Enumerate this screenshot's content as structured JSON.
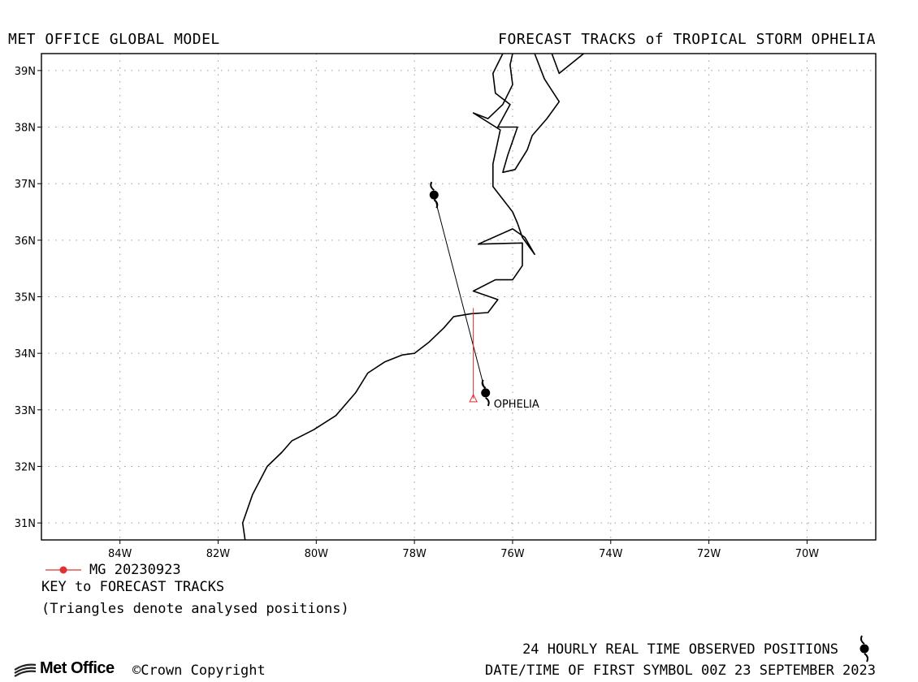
{
  "header": {
    "left": "MET OFFICE GLOBAL MODEL",
    "right": "FORECAST TRACKS of TROPICAL STORM OPHELIA"
  },
  "map": {
    "lon_range": [
      -85.6,
      -68.6
    ],
    "lat_range": [
      30.7,
      39.3
    ],
    "x_ticks": [
      {
        "value": -84,
        "label": "84W"
      },
      {
        "value": -82,
        "label": "82W"
      },
      {
        "value": -80,
        "label": "80W"
      },
      {
        "value": -78,
        "label": "78W"
      },
      {
        "value": -76,
        "label": "76W"
      },
      {
        "value": -74,
        "label": "74W"
      },
      {
        "value": -72,
        "label": "72W"
      },
      {
        "value": -70,
        "label": "70W"
      }
    ],
    "y_ticks": [
      {
        "value": 31,
        "label": "31N"
      },
      {
        "value": 32,
        "label": "32N"
      },
      {
        "value": 33,
        "label": "33N"
      },
      {
        "value": 34,
        "label": "34N"
      },
      {
        "value": 35,
        "label": "35N"
      },
      {
        "value": 36,
        "label": "36N"
      },
      {
        "value": 37,
        "label": "37N"
      },
      {
        "value": 38,
        "label": "38N"
      },
      {
        "value": 39,
        "label": "39N"
      }
    ],
    "grid": "dotted",
    "coastline": [
      [
        [
          -81.45,
          30.7
        ],
        [
          -81.5,
          31.0
        ],
        [
          -81.3,
          31.5
        ],
        [
          -81.0,
          32.0
        ],
        [
          -80.7,
          32.25
        ],
        [
          -80.5,
          32.45
        ],
        [
          -80.05,
          32.65
        ],
        [
          -79.6,
          32.9
        ],
        [
          -79.2,
          33.3
        ],
        [
          -78.95,
          33.65
        ],
        [
          -78.6,
          33.85
        ],
        [
          -78.25,
          33.97
        ],
        [
          -78.0,
          34.0
        ],
        [
          -77.7,
          34.2
        ],
        [
          -77.4,
          34.45
        ],
        [
          -77.2,
          34.65
        ],
        [
          -76.85,
          34.7
        ],
        [
          -76.5,
          34.72
        ],
        [
          -76.3,
          34.95
        ],
        [
          -76.8,
          35.1
        ],
        [
          -76.35,
          35.3
        ],
        [
          -76.0,
          35.3
        ],
        [
          -75.8,
          35.55
        ],
        [
          -75.8,
          35.95
        ],
        [
          -76.7,
          35.93
        ],
        [
          -76.0,
          36.2
        ],
        [
          -75.75,
          36.05
        ],
        [
          -75.55,
          35.75
        ],
        [
          -75.8,
          36.05
        ],
        [
          -75.9,
          36.3
        ],
        [
          -76.0,
          36.5
        ],
        [
          -76.4,
          36.95
        ],
        [
          -76.4,
          37.35
        ],
        [
          -76.25,
          37.95
        ],
        [
          -76.8,
          38.25
        ],
        [
          -76.5,
          38.15
        ],
        [
          -76.2,
          38.4
        ],
        [
          -76.0,
          38.75
        ],
        [
          -76.05,
          39.1
        ],
        [
          -76.0,
          39.3
        ]
      ],
      [
        [
          -76.2,
          39.3
        ],
        [
          -76.4,
          38.95
        ],
        [
          -76.35,
          38.6
        ],
        [
          -76.05,
          38.4
        ],
        [
          -76.3,
          38.0
        ],
        [
          -75.9,
          38.0
        ],
        [
          -76.1,
          37.5
        ],
        [
          -76.2,
          37.2
        ],
        [
          -75.95,
          37.25
        ],
        [
          -75.7,
          37.6
        ],
        [
          -75.6,
          37.85
        ],
        [
          -75.3,
          38.15
        ],
        [
          -75.05,
          38.45
        ],
        [
          -75.35,
          38.85
        ],
        [
          -75.55,
          39.3
        ]
      ],
      [
        [
          -75.2,
          39.3
        ],
        [
          -75.05,
          38.95
        ],
        [
          -74.55,
          39.3
        ]
      ]
    ]
  },
  "storm": {
    "name_label": "OPHELIA",
    "observed_positions": [
      {
        "lon": -76.55,
        "lat": 33.3
      },
      {
        "lon": -77.6,
        "lat": 36.8
      }
    ],
    "forecast_track": [
      {
        "lon": -76.8,
        "lat": 34.8
      },
      {
        "lon": -76.8,
        "lat": 33.2
      }
    ],
    "analysed_position": {
      "lon": -76.8,
      "lat": 33.2
    }
  },
  "legend": {
    "entry_label": "MG 20230923",
    "title": "KEY to FORECAST TRACKS",
    "note": "(Triangles denote analysed positions)"
  },
  "footer": {
    "logo_text": "Met Office",
    "copyright": "©Crown Copyright",
    "observed_text": "24 HOURLY REAL TIME OBSERVED POSITIONS",
    "first_symbol_text": "DATE/TIME OF FIRST SYMBOL 00Z 23 SEPTEMBER 2023"
  },
  "colors": {
    "frame": "#000000",
    "grid": "#9a9a9a",
    "coastline": "#000000",
    "observed_track": "#000000",
    "forecast_track": "#e03030"
  }
}
